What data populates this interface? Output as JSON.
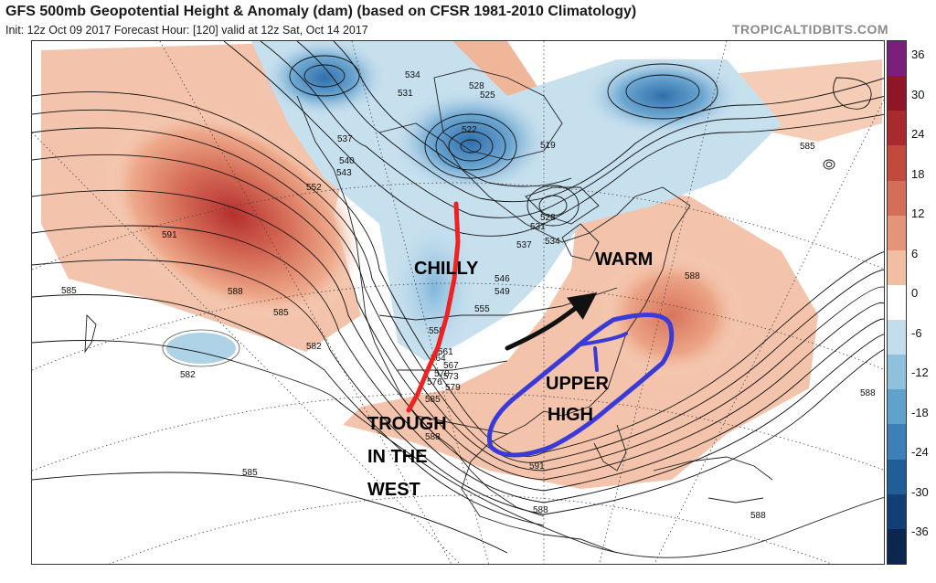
{
  "header": {
    "title": "GFS 500mb Geopotential Height & Anomaly (dam) (based on CFSR 1981-2010 Climatology)",
    "subtitle": "Init: 12z Oct 09 2017   Forecast Hour: [120]   valid at 12z Sat, Oct 14 2017",
    "site": "TROPICALTIDBITS.COM"
  },
  "colorbar": {
    "labels": [
      "36",
      "30",
      "24",
      "18",
      "12",
      "6",
      "0",
      "-6",
      "-12",
      "-18",
      "-24",
      "-30",
      "-36"
    ],
    "colors": [
      "#7b1f7a",
      "#8e1626",
      "#a82a2e",
      "#c24a3c",
      "#d56e56",
      "#e59577",
      "#f2bea2",
      "#ffffff",
      "#c3deea",
      "#8fc1dc",
      "#5fa2cc",
      "#3d7fb8",
      "#1f5e98",
      "#123f75",
      "#0b2750"
    ]
  },
  "contour_labels": [
    "534",
    "531",
    "528",
    "525",
    "522",
    "519",
    "537",
    "540",
    "543",
    "546",
    "549",
    "552",
    "555",
    "558",
    "561",
    "564",
    "567",
    "570",
    "573",
    "576",
    "579",
    "582",
    "585",
    "588",
    "591"
  ],
  "annotations": {
    "chilly": "CHILLY",
    "warm": "WARM",
    "upper_high_1": "UPPER",
    "upper_high_2": "HIGH",
    "trough_1": "TROUGH",
    "trough_2": "IN THE",
    "trough_3": "WEST"
  },
  "annotation_colors": {
    "trough_line": "#ee2222",
    "high_circle": "#3a3ad6",
    "arrow": "#111111"
  }
}
